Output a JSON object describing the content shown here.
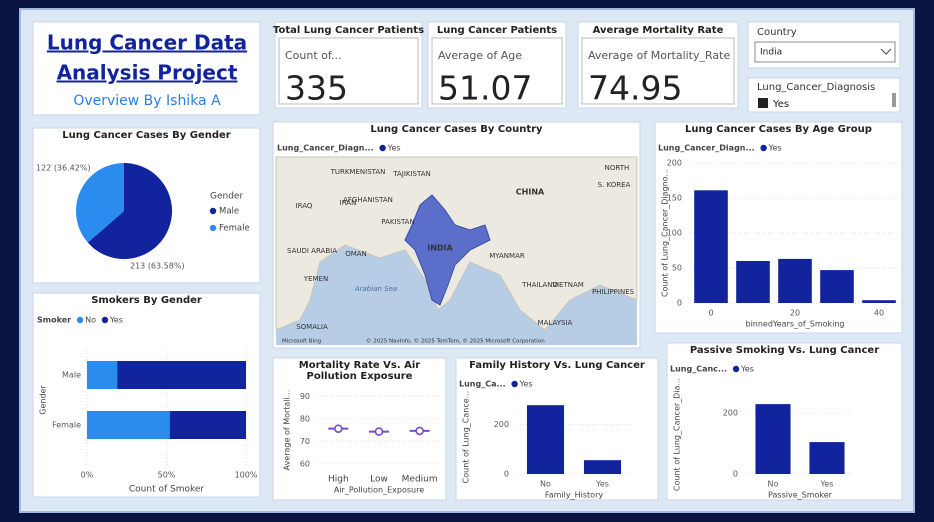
{
  "header": {
    "title_line1": "Lung Cancer Data",
    "title_line2": "Analysis Project",
    "subtitle": "Overview By Ishika A"
  },
  "cards": [
    {
      "title": "Total Lung Cancer Patients",
      "label": "Count of...",
      "value": 335
    },
    {
      "title": "Lung Cancer Patients",
      "label": "Average of Age",
      "value": 51.07
    },
    {
      "title": "Average Mortality Rate",
      "label": "Average of Mortality_Rate",
      "value": 74.95
    }
  ],
  "slicers": [
    {
      "title": "Country",
      "selected": "India"
    },
    {
      "title": "Lung_Cancer_Diagnosis",
      "selected": "Yes"
    }
  ],
  "chart_data": [
    {
      "type": "pie",
      "title": "Lung Cancer Cases By Gender",
      "legend_title": "Gender",
      "categories": [
        "Male",
        "Female"
      ],
      "values": [
        213,
        122
      ],
      "value_labels": [
        "213 (63.58%)",
        "122 (36.42%)"
      ],
      "colors": [
        "#12239E",
        "#2b8cf0"
      ]
    },
    {
      "type": "map",
      "title": "Lung Cancer Cases By Country",
      "legend_title": "Lung_Cancer_Diagn...",
      "series": [
        {
          "name": "Yes",
          "color": "#12239E"
        }
      ],
      "highlight": "INDIA",
      "labels": [
        "CHINA",
        "INDIA",
        "PAKISTAN",
        "IRAN",
        "AFGHANISTAN",
        "TURKMENISTAN",
        "TAJIKISTAN",
        "IRAQ",
        "SAUDI ARABIA",
        "OMAN",
        "YEMEN",
        "MYANMAR",
        "THAILAND",
        "VIETNAM",
        "PHILIPPINES",
        "MALAYSIA",
        "SOMALIA",
        "Arabian Sea",
        "NORTH",
        "S. KOREA"
      ],
      "attribution": "© 2025 NavInfo, © 2025 TomTom, © 2025 Microsoft Corporation",
      "logo": "Microsoft Bing"
    },
    {
      "type": "bar",
      "title": "Lung Cancer Cases By Age Group",
      "legend_title": "Lung_Cancer_Diagn...",
      "x": [
        0,
        10,
        20,
        30,
        40
      ],
      "series": [
        {
          "name": "Yes",
          "color": "#12239E",
          "values": [
            161,
            60,
            63,
            47,
            4
          ]
        }
      ],
      "xlim": [
        -5,
        45
      ],
      "xticks": [
        0,
        20,
        40
      ],
      "ylim": [
        0,
        200
      ],
      "yticks": [
        0,
        50,
        100,
        150,
        200
      ],
      "xlabel": "binnedYears_of_Smoking",
      "ylabel": "Count of Lung_Cancer_Diagno...",
      "grid": true
    },
    {
      "type": "hbar",
      "title": "Smokers By Gender",
      "legend_title": "Smoker",
      "stacked": true,
      "categories": [
        "Male",
        "Female"
      ],
      "series": [
        {
          "name": "No",
          "color": "#2b8cf0",
          "values": [
            19,
            52
          ]
        },
        {
          "name": "Yes",
          "color": "#12239E",
          "values": [
            81,
            48
          ]
        }
      ],
      "xlim": [
        0,
        100
      ],
      "xticks": [
        {
          "value": 0,
          "label": "0%"
        },
        {
          "value": 50,
          "label": "50%"
        },
        {
          "value": 100,
          "label": "100%"
        }
      ],
      "xlabel": "Count of Smoker",
      "ylabel": "Gender",
      "grid": true
    },
    {
      "type": "line",
      "title": "Mortality Rate Vs. Air Pollution Exposure",
      "categories": [
        "High",
        "Low",
        "Medium"
      ],
      "series": [
        {
          "name": "Average of Mortality_Rate",
          "color": "#744EC2",
          "values": [
            75.6,
            74.3,
            74.6
          ]
        }
      ],
      "ylim": [
        55,
        95
      ],
      "yticks": [
        60,
        70,
        80,
        90
      ],
      "xlabel": "Air_Pollution_Exposure",
      "ylabel": "Average of Mortali...",
      "grid": true
    },
    {
      "type": "bar",
      "title": "Family History Vs. Lung Cancer",
      "legend_title": "Lung_Ca...",
      "categories": [
        "No",
        "Yes"
      ],
      "series": [
        {
          "name": "Yes",
          "color": "#12239E",
          "values": [
            279,
            56
          ]
        }
      ],
      "ylim": [
        0,
        300
      ],
      "yticks": [
        0,
        200
      ],
      "xlabel": "Family_History",
      "ylabel": "Count of Lung_Cance...",
      "grid": true
    },
    {
      "type": "bar",
      "title": "Passive Smoking Vs. Lung Cancer",
      "legend_title": "Lung_Canc...",
      "categories": [
        "No",
        "Yes"
      ],
      "series": [
        {
          "name": "Yes",
          "color": "#12239E",
          "values": [
            230,
            105
          ]
        }
      ],
      "ylim": [
        0,
        260
      ],
      "yticks": [
        0,
        200
      ],
      "xlabel": "Passive_Smoker",
      "ylabel": "Count of Lung_Cancer_Dia...",
      "grid": true
    }
  ]
}
